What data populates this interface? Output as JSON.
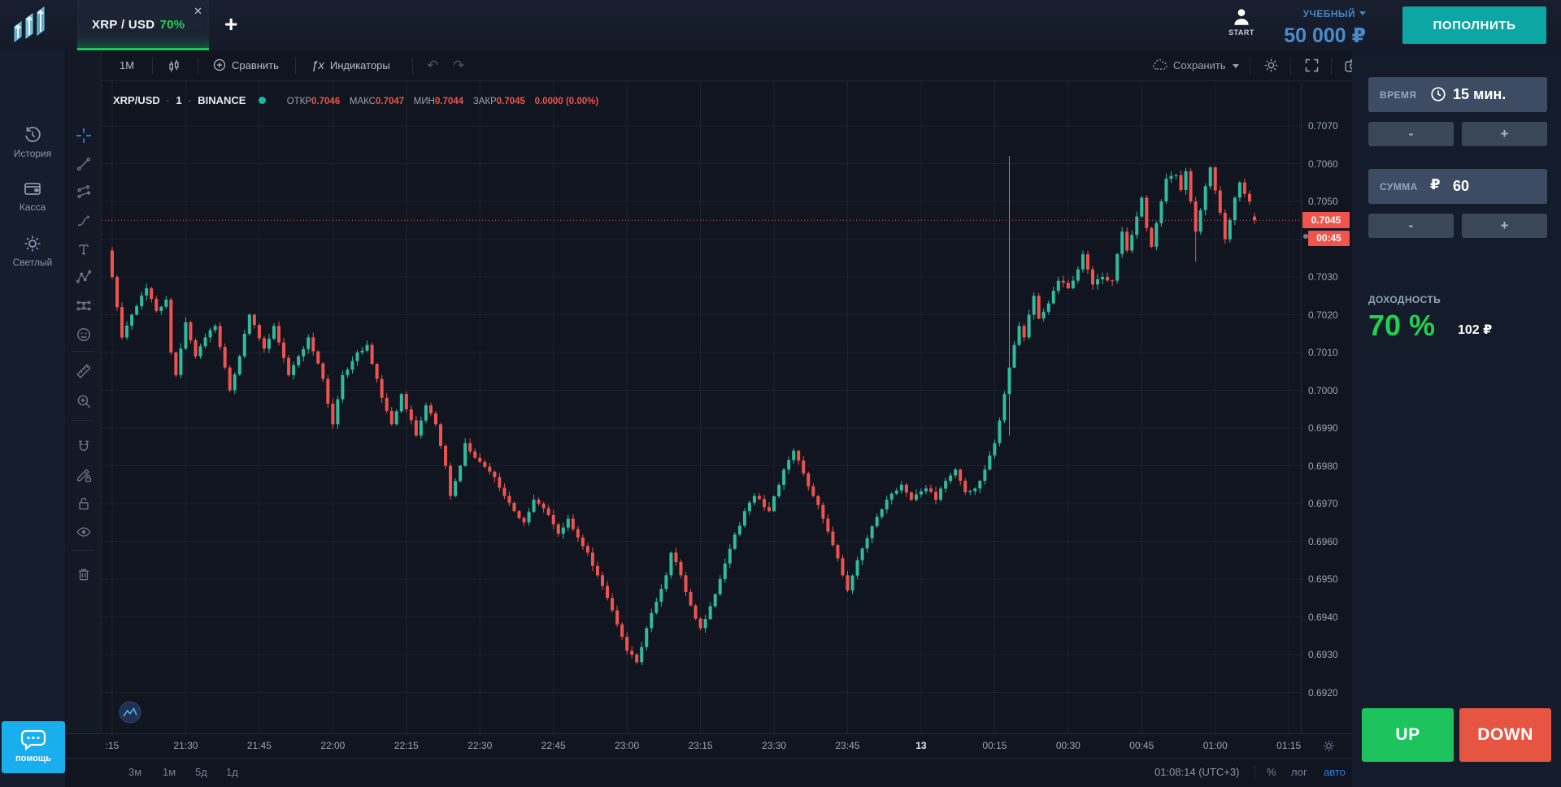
{
  "topbar": {
    "tab": {
      "symbol": "XRP / USD",
      "payout": "70%",
      "close_glyph": "✕"
    },
    "add_tab_glyph": "+",
    "account": {
      "start_label": "START",
      "type": "УЧЕБНЫЙ",
      "balance": "50 000 ₽"
    },
    "deposit_label": "ПОПОЛНИТЬ"
  },
  "sidebar": {
    "items": [
      {
        "label": "История",
        "icon": "history-icon"
      },
      {
        "label": "Касса",
        "icon": "wallet-icon"
      },
      {
        "label": "Светлый",
        "icon": "light-theme-icon"
      }
    ],
    "help_label": "помощь"
  },
  "chart_toolbar": {
    "interval": "1M",
    "compare": "Сравнить",
    "indicators": "Индикаторы",
    "indicators_glyph": "ƒx",
    "undo_glyph": "↶",
    "redo_glyph": "↷",
    "save": "Сохранить"
  },
  "legend": {
    "symbol": "XRP/USD",
    "dot1": "·",
    "interval": "1",
    "dot2": "·",
    "exchange": "BINANCE",
    "open_label": "ОТКР",
    "open": "0.7046",
    "high_label": "МАКС",
    "high": "0.7047",
    "low_label": "МИН",
    "low": "0.7044",
    "close_label": "ЗАКР",
    "close": "0.7045",
    "change": "0.0000 (0.00%)"
  },
  "trade_panel": {
    "time_label": "ВРЕМЯ",
    "time_value": "15 мин.",
    "amount_label": "СУММА",
    "amount_currency": "₽",
    "amount_value": "60",
    "minus_glyph": "-",
    "plus_glyph": "+",
    "payout_label": "ДОХОДНОСТЬ",
    "payout_percent": "70 %",
    "payout_amount": "102 ₽",
    "up_label": "UP",
    "down_label": "DOWN"
  },
  "bottom_bar": {
    "ranges": [
      "3м",
      "1м",
      "5д",
      "1д"
    ],
    "clock": "01:08:14 (UTC+3)",
    "percent": "%",
    "log": "лог",
    "auto": "авто"
  },
  "chart_data": {
    "type": "candlestick",
    "symbol": "XRP/USD",
    "exchange": "BINANCE",
    "interval_minutes": 1,
    "visible_time_range": {
      "from": "21:15",
      "to": "01:15"
    },
    "x_tick_labels": [
      ":15",
      "21:30",
      "21:45",
      "22:00",
      "22:15",
      "22:30",
      "22:45",
      "23:00",
      "23:15",
      "23:30",
      "23:45",
      "13",
      "00:15",
      "00:30",
      "00:45",
      "01:00",
      "01:15"
    ],
    "date_label": "13",
    "y_axis": {
      "min": 0.692,
      "max": 0.707,
      "tick_step": 0.001,
      "hidden_tick": 0.704
    },
    "current_price": 0.7045,
    "countdown": "00:45",
    "last_candle": {
      "open": 0.7046,
      "high": 0.7047,
      "low": 0.7044,
      "close": 0.7045
    },
    "first_open": 0.7037,
    "up_color": "#31ba9d",
    "down_color": "#ef534f",
    "current_price_line_color": "#f0544c",
    "grid_color": "#1b2331",
    "price_path": [
      [
        0,
        0.703
      ],
      [
        1,
        0.7022
      ],
      [
        2,
        0.7014
      ],
      [
        4,
        0.702
      ],
      [
        7,
        0.7027
      ],
      [
        9,
        0.7021
      ],
      [
        11,
        0.7024
      ],
      [
        12,
        0.701
      ],
      [
        13,
        0.7004
      ],
      [
        15,
        0.7018
      ],
      [
        17,
        0.7009
      ],
      [
        19,
        0.7014
      ],
      [
        21,
        0.7017
      ],
      [
        23,
        0.7006
      ],
      [
        24,
        0.7
      ],
      [
        26,
        0.7009
      ],
      [
        28,
        0.702
      ],
      [
        31,
        0.7011
      ],
      [
        33,
        0.7017
      ],
      [
        36,
        0.7004
      ],
      [
        38,
        0.7009
      ],
      [
        40,
        0.7014
      ],
      [
        43,
        0.7003
      ],
      [
        45,
        0.6991
      ],
      [
        47,
        0.7004
      ],
      [
        50,
        0.701
      ],
      [
        52,
        0.7012
      ],
      [
        55,
        0.6998
      ],
      [
        57,
        0.6991
      ],
      [
        59,
        0.6999
      ],
      [
        62,
        0.6988
      ],
      [
        64,
        0.6996
      ],
      [
        66,
        0.6991
      ],
      [
        68,
        0.698
      ],
      [
        69,
        0.6972
      ],
      [
        71,
        0.698
      ],
      [
        72,
        0.6986
      ],
      [
        75,
        0.6981
      ],
      [
        78,
        0.6977
      ],
      [
        80,
        0.6972
      ],
      [
        82,
        0.6968
      ],
      [
        84,
        0.6965
      ],
      [
        86,
        0.6971
      ],
      [
        89,
        0.6967
      ],
      [
        91,
        0.6962
      ],
      [
        93,
        0.6966
      ],
      [
        95,
        0.6961
      ],
      [
        97,
        0.6957
      ],
      [
        99,
        0.6951
      ],
      [
        101,
        0.6945
      ],
      [
        103,
        0.6938
      ],
      [
        105,
        0.6931
      ],
      [
        107,
        0.6928
      ],
      [
        109,
        0.6937
      ],
      [
        111,
        0.6944
      ],
      [
        113,
        0.6951
      ],
      [
        114,
        0.6957
      ],
      [
        116,
        0.6951
      ],
      [
        118,
        0.6943
      ],
      [
        120,
        0.6937
      ],
      [
        123,
        0.6946
      ],
      [
        126,
        0.6958
      ],
      [
        129,
        0.6968
      ],
      [
        131,
        0.6972
      ],
      [
        134,
        0.6968
      ],
      [
        137,
        0.6979
      ],
      [
        139,
        0.6984
      ],
      [
        141,
        0.6978
      ],
      [
        143,
        0.6972
      ],
      [
        145,
        0.6966
      ],
      [
        147,
        0.6959
      ],
      [
        149,
        0.6951
      ],
      [
        150,
        0.6947
      ],
      [
        152,
        0.6955
      ],
      [
        155,
        0.6964
      ],
      [
        158,
        0.6971
      ],
      [
        161,
        0.6975
      ],
      [
        163,
        0.6971
      ],
      [
        166,
        0.6974
      ],
      [
        168,
        0.6971
      ],
      [
        170,
        0.6976
      ],
      [
        172,
        0.6979
      ],
      [
        174,
        0.6973
      ],
      [
        176,
        0.6974
      ],
      [
        178,
        0.6979
      ],
      [
        180,
        0.6986
      ],
      [
        181,
        0.6992
      ],
      [
        182,
        0.6999
      ],
      [
        183,
        0.7006
      ],
      [
        184,
        0.7012
      ],
      [
        185,
        0.7017
      ],
      [
        186,
        0.7014
      ],
      [
        187,
        0.702
      ],
      [
        188,
        0.7025
      ],
      [
        189,
        0.7019
      ],
      [
        191,
        0.7023
      ],
      [
        193,
        0.7029
      ],
      [
        195,
        0.7027
      ],
      [
        197,
        0.7032
      ],
      [
        198,
        0.7036
      ],
      [
        200,
        0.7028
      ],
      [
        202,
        0.703
      ],
      [
        204,
        0.7029
      ],
      [
        206,
        0.7042
      ],
      [
        207,
        0.7037
      ],
      [
        209,
        0.7046
      ],
      [
        210,
        0.7051
      ],
      [
        211,
        0.7043
      ],
      [
        212,
        0.7038
      ],
      [
        214,
        0.705
      ],
      [
        215,
        0.7056
      ],
      [
        217,
        0.7057
      ],
      [
        218,
        0.7053
      ],
      [
        219,
        0.7058
      ],
      [
        220,
        0.705
      ],
      [
        221,
        0.7042
      ],
      [
        223,
        0.7054
      ],
      [
        224,
        0.7059
      ],
      [
        226,
        0.7047
      ],
      [
        227,
        0.704
      ],
      [
        229,
        0.7051
      ],
      [
        230,
        0.7055
      ],
      [
        231,
        0.7052
      ],
      [
        232,
        0.705
      ],
      [
        233,
        0.7045
      ]
    ],
    "special_wicks": [
      {
        "t": 183,
        "high": 0.7062,
        "low": 0.6988
      },
      {
        "t": 221,
        "low": 0.7034
      }
    ]
  }
}
